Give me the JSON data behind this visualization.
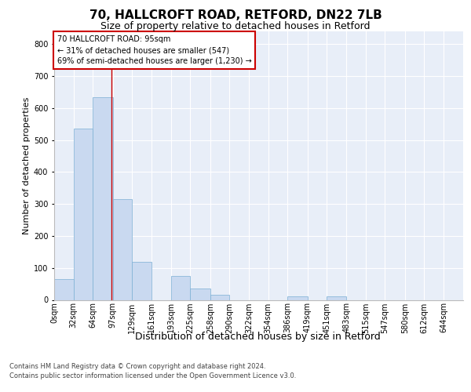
{
  "title1": "70, HALLCROFT ROAD, RETFORD, DN22 7LB",
  "title2": "Size of property relative to detached houses in Retford",
  "xlabel": "Distribution of detached houses by size in Retford",
  "ylabel": "Number of detached properties",
  "footnote1": "Contains HM Land Registry data © Crown copyright and database right 2024.",
  "footnote2": "Contains public sector information licensed under the Open Government Licence v3.0.",
  "annotation_title": "70 HALLCROFT ROAD: 95sqm",
  "annotation_line2": "← 31% of detached houses are smaller (547)",
  "annotation_line3": "69% of semi-detached houses are larger (1,230) →",
  "property_value": 95,
  "bar_categories": [
    "0sqm",
    "32sqm",
    "64sqm",
    "97sqm",
    "129sqm",
    "161sqm",
    "193sqm",
    "225sqm",
    "258sqm",
    "290sqm",
    "322sqm",
    "354sqm",
    "386sqm",
    "419sqm",
    "451sqm",
    "483sqm",
    "515sqm",
    "547sqm",
    "580sqm",
    "612sqm",
    "644sqm"
  ],
  "bar_heights": [
    65,
    535,
    635,
    315,
    120,
    0,
    75,
    35,
    15,
    0,
    0,
    0,
    10,
    0,
    10,
    0,
    0,
    0,
    0,
    0,
    0
  ],
  "bar_left_edges": [
    0,
    32,
    64,
    97,
    129,
    161,
    193,
    225,
    258,
    290,
    322,
    354,
    386,
    419,
    451,
    483,
    515,
    547,
    580,
    612,
    644
  ],
  "bar_widths": [
    32,
    32,
    33,
    32,
    32,
    32,
    32,
    33,
    32,
    32,
    32,
    32,
    33,
    32,
    32,
    32,
    32,
    33,
    32,
    32,
    32
  ],
  "bar_color": "#c9d9f0",
  "bar_edge_color": "#7bafd4",
  "bg_color": "#e8eef8",
  "grid_color": "#ffffff",
  "vline_x": 95,
  "vline_color": "#cc0000",
  "annotation_edge_color": "#cc0000",
  "ylim_max": 840,
  "yticks": [
    0,
    100,
    200,
    300,
    400,
    500,
    600,
    700,
    800
  ],
  "title1_fontsize": 11,
  "title2_fontsize": 9,
  "xlabel_fontsize": 9,
  "ylabel_fontsize": 8,
  "annotation_fontsize": 7,
  "tick_fontsize": 7,
  "footnote_fontsize": 6
}
